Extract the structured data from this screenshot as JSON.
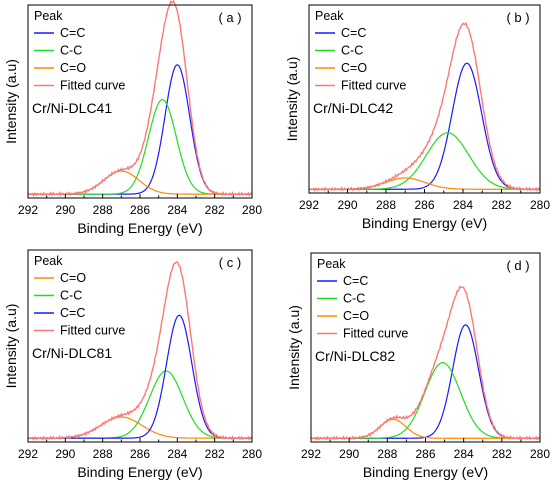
{
  "chart_data": [
    {
      "type": "line",
      "panel_label": "( a )",
      "sample": "Cr/Ni-DLC41",
      "legend_title": "Peak",
      "xlabel": "Binding Energy (eV)",
      "ylabel": "Intensity (a.u)",
      "xlim": [
        292,
        280
      ],
      "x_ticks": [
        "292",
        "290",
        "288",
        "286",
        "284",
        "282",
        "280"
      ],
      "series": [
        {
          "name": "C=C",
          "color": "#1a1aff",
          "kind": "gaussian",
          "center": 284.0,
          "height": 0.67,
          "fwhm": 1.55
        },
        {
          "name": "C-C",
          "color": "#22dd22",
          "kind": "gaussian",
          "center": 284.8,
          "height": 0.49,
          "fwhm": 1.75
        },
        {
          "name": "C=O",
          "color": "#ff8800",
          "kind": "gaussian",
          "center": 287.0,
          "height": 0.12,
          "fwhm": 2.2
        },
        {
          "name": "Fitted curve",
          "color": "#ff7777",
          "kind": "sum"
        }
      ]
    },
    {
      "type": "line",
      "panel_label": "( b )",
      "sample": "Cr/Ni-DLC42",
      "legend_title": "Peak",
      "xlabel": "Binding Energy (eV)",
      "ylabel": "Intensity (a.u)",
      "xlim": [
        292,
        280
      ],
      "x_ticks": [
        "292",
        "290",
        "288",
        "286",
        "284",
        "282",
        "280"
      ],
      "series": [
        {
          "name": "C=C",
          "color": "#1a1aff",
          "kind": "gaussian",
          "center": 283.8,
          "height": 0.67,
          "fwhm": 1.8
        },
        {
          "name": "C-C",
          "color": "#22dd22",
          "kind": "gaussian",
          "center": 284.8,
          "height": 0.3,
          "fwhm": 2.6
        },
        {
          "name": "C=O",
          "color": "#ff8800",
          "kind": "gaussian",
          "center": 287.0,
          "height": 0.06,
          "fwhm": 2.4
        },
        {
          "name": "Fitted curve",
          "color": "#ff7777",
          "kind": "sum"
        }
      ]
    },
    {
      "type": "line",
      "panel_label": "( c )",
      "sample": "Cr/Ni-DLC81",
      "legend_title": "Peak",
      "xlabel": "Binding Energy (eV)",
      "ylabel": "Intensity (a.u)",
      "xlim": [
        292,
        280
      ],
      "x_ticks": [
        "292",
        "290",
        "288",
        "286",
        "284",
        "282",
        "280"
      ],
      "series": [
        {
          "name": "C=O",
          "color": "#ff8800",
          "kind": "gaussian",
          "center": 287.0,
          "height": 0.11,
          "fwhm": 2.6
        },
        {
          "name": "C-C",
          "color": "#22dd22",
          "kind": "gaussian",
          "center": 284.6,
          "height": 0.35,
          "fwhm": 2.1
        },
        {
          "name": "C=C",
          "color": "#1a1aff",
          "kind": "gaussian",
          "center": 283.9,
          "height": 0.64,
          "fwhm": 1.6
        },
        {
          "name": "Fitted curve",
          "color": "#ff7777",
          "kind": "sum"
        }
      ]
    },
    {
      "type": "line",
      "panel_label": "( d )",
      "sample": "Cr/Ni-DLC82",
      "legend_title": "Peak",
      "xlabel": "Binding Energy (eV)",
      "ylabel": "Intensity (a.u)",
      "xlim": [
        292,
        280
      ],
      "x_ticks": [
        "292",
        "290",
        "288",
        "286",
        "284",
        "282",
        "280"
      ],
      "series": [
        {
          "name": "C=C",
          "color": "#1a1aff",
          "kind": "gaussian",
          "center": 283.9,
          "height": 0.6,
          "fwhm": 1.6
        },
        {
          "name": "C-C",
          "color": "#22dd22",
          "kind": "gaussian",
          "center": 285.1,
          "height": 0.4,
          "fwhm": 2.2
        },
        {
          "name": "C=O",
          "color": "#ff8800",
          "kind": "gaussian",
          "center": 287.7,
          "height": 0.1,
          "fwhm": 1.6
        },
        {
          "name": "Fitted curve",
          "color": "#ff7777",
          "kind": "sum"
        }
      ]
    }
  ]
}
